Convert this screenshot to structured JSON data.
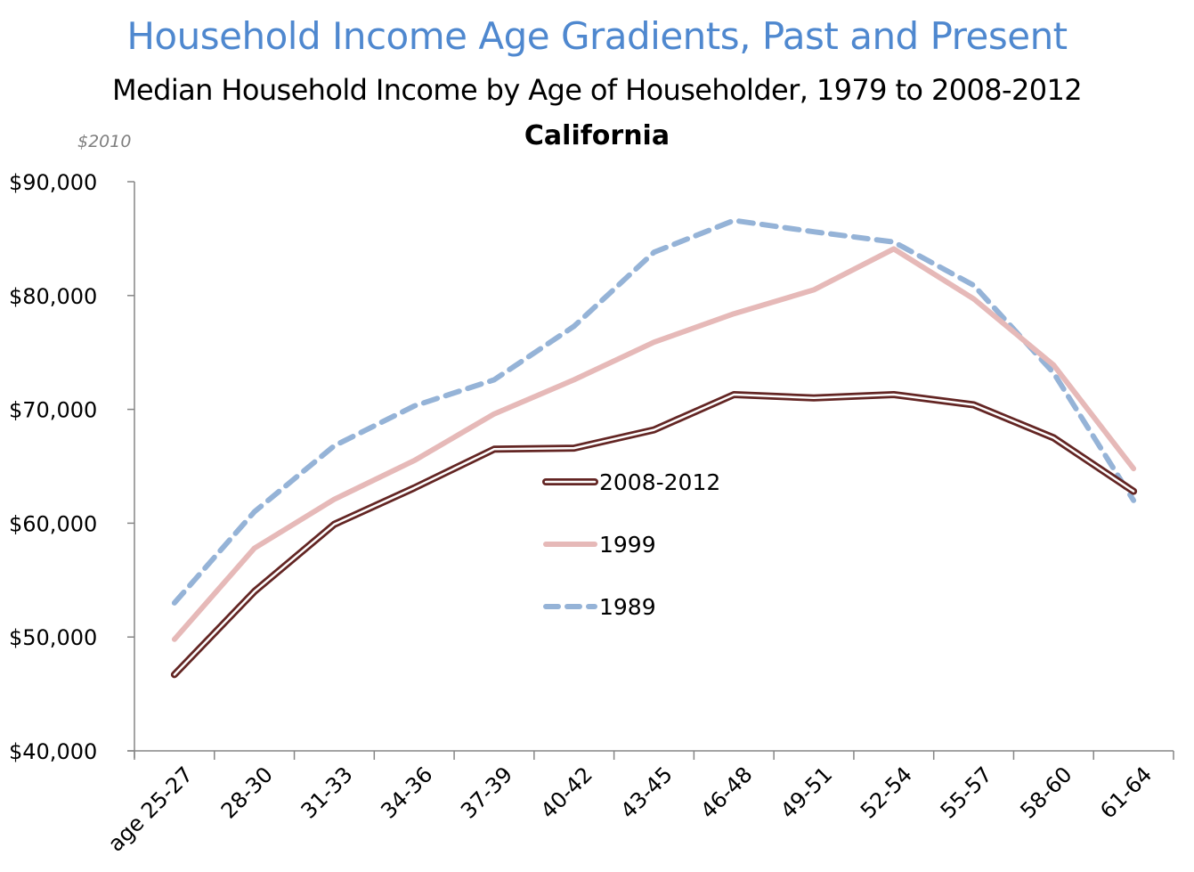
{
  "header": {
    "title": "Household Income Age Gradients, Past and Present",
    "subtitle": "Median Household Income by Age of Householder, 1979 to 2008-2012",
    "region": "California",
    "units": "$2010"
  },
  "colors": {
    "title": "#4f88cf",
    "series_2008_2012": "#632523",
    "series_1999": "#e6b9b8",
    "series_1989": "#95b3d7",
    "axis": "#868686"
  },
  "legend": {
    "items": [
      {
        "label": "2008-2012",
        "style": "double-line"
      },
      {
        "label": "1999",
        "style": "solid"
      },
      {
        "label": "1989",
        "style": "dashed"
      }
    ]
  },
  "chart_data": {
    "type": "line",
    "title": "Household Income Age Gradients, Past and Present",
    "subtitle": "Median Household Income by Age of Householder, 1979 to 2008-2012 — California",
    "xlabel": "",
    "ylabel": "$2010",
    "ylim": [
      40000,
      90000
    ],
    "yticks": [
      "$40,000",
      "$50,000",
      "$60,000",
      "$70,000",
      "$80,000",
      "$90,000"
    ],
    "grid": false,
    "legend_position": "inside-center",
    "categories": [
      "age 25-27",
      "28-30",
      "31-33",
      "34-36",
      "37-39",
      "40-42",
      "43-45",
      "46-48",
      "49-51",
      "52-54",
      "55-57",
      "58-60",
      "61-64"
    ],
    "series": [
      {
        "name": "2008-2012",
        "values": [
          46700,
          54000,
          59900,
          63100,
          66500,
          66600,
          68200,
          71300,
          71000,
          71300,
          70400,
          67500,
          62800
        ]
      },
      {
        "name": "1999",
        "values": [
          49800,
          57800,
          62100,
          65500,
          69600,
          72600,
          75900,
          78400,
          80500,
          84100,
          79700,
          73900,
          64800
        ]
      },
      {
        "name": "1989",
        "values": [
          53000,
          61000,
          66800,
          70300,
          72600,
          77300,
          83800,
          86600,
          85600,
          84700,
          80900,
          73200,
          62000
        ]
      }
    ]
  }
}
